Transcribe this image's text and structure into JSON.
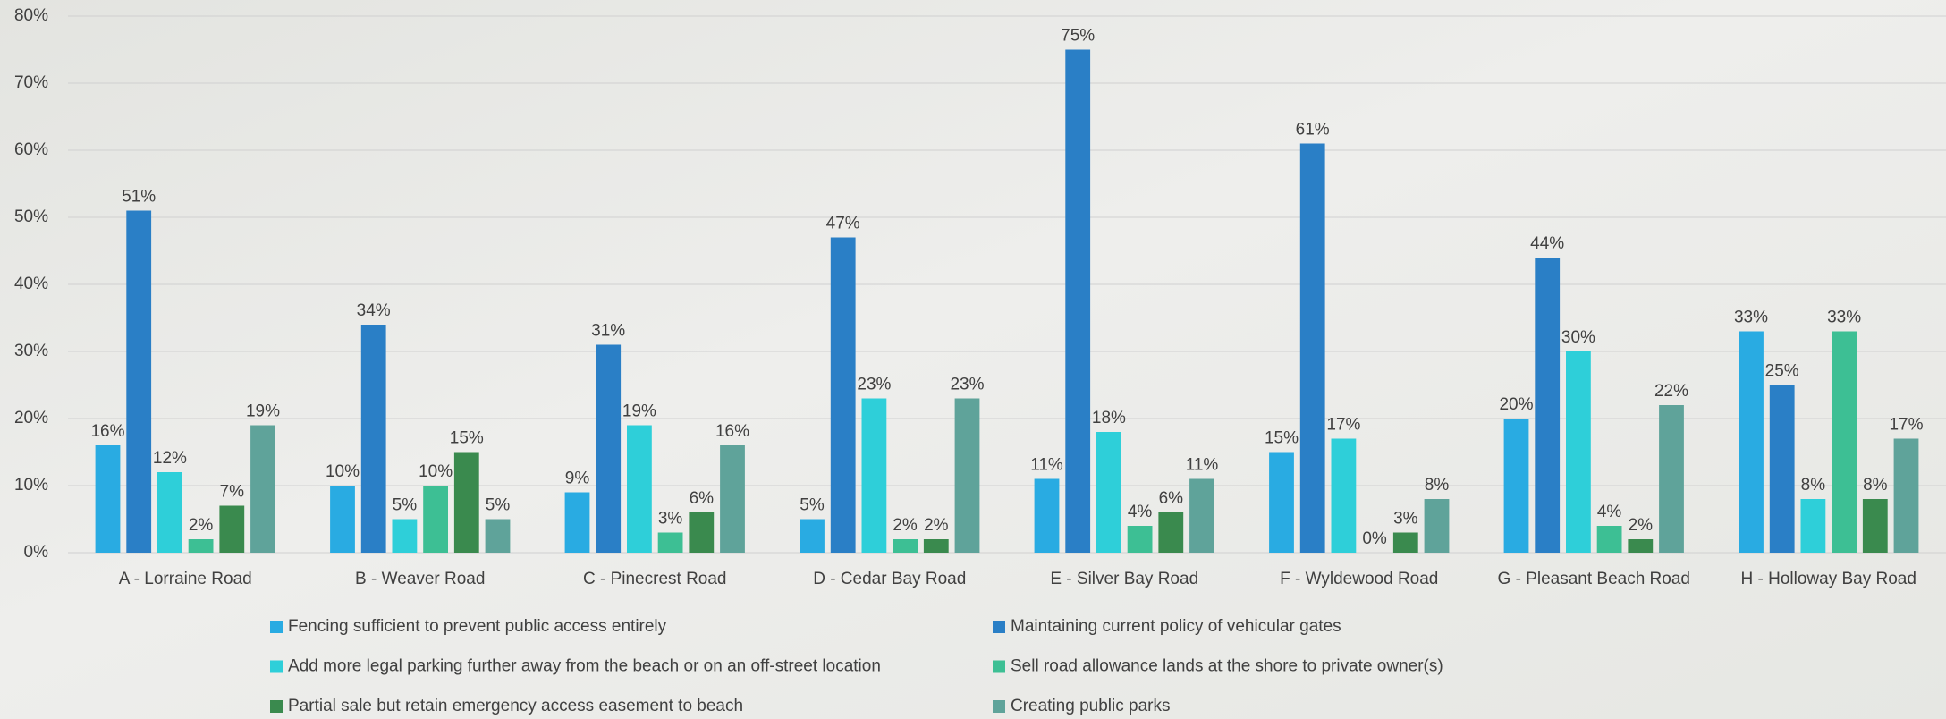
{
  "chart_data": {
    "type": "bar",
    "categories": [
      "A - Lorraine Road",
      "B - Weaver Road",
      "C - Pinecrest Road",
      "D - Cedar Bay Road",
      "E - Silver Bay Road",
      "F - Wyldewood Road",
      "G - Pleasant Beach Road",
      "H - Holloway Bay Road"
    ],
    "series": [
      {
        "name": "Fencing sufficient to prevent public access entirely",
        "color": "#29abe2",
        "values": [
          16,
          10,
          9,
          5,
          11,
          15,
          20,
          33
        ],
        "value_labels": [
          "16%",
          "10%",
          "9%",
          "5%",
          "11%",
          "15%",
          "20%",
          "33%"
        ]
      },
      {
        "name": "Maintaining current policy of vehicular gates",
        "color": "#2a7fc6",
        "values": [
          51,
          34,
          31,
          47,
          75,
          61,
          44,
          25
        ],
        "value_labels": [
          "51%",
          "34%",
          "31%",
          "47%",
          "75%",
          "61%",
          "44%",
          "25%"
        ]
      },
      {
        "name": "Add more legal parking further away from the beach or on an off-street location",
        "color": "#2ecfd9",
        "values": [
          12,
          5,
          19,
          23,
          18,
          17,
          30,
          8
        ],
        "value_labels": [
          "12%",
          "5%",
          "19%",
          "23%",
          "18%",
          "17%",
          "30%",
          "8%"
        ]
      },
      {
        "name": "Sell road allowance lands at the shore to private owner(s)",
        "color": "#3dbf94",
        "values": [
          2,
          10,
          3,
          2,
          4,
          0,
          4,
          33
        ],
        "value_labels": [
          "2%",
          "10%",
          "3%",
          "2%",
          "4%",
          "0%",
          "4%",
          "33%"
        ]
      },
      {
        "name": "Partial sale but retain emergency access easement to beach",
        "color": "#3a8a4e",
        "values": [
          7,
          15,
          6,
          2,
          6,
          3,
          2,
          8
        ],
        "value_labels": [
          "7%",
          "15%",
          "6%",
          "2%",
          "6%",
          "3%",
          "2%",
          "8%"
        ]
      },
      {
        "name": "Creating public parks",
        "color": "#5fa39a",
        "values": [
          19,
          5,
          16,
          23,
          11,
          8,
          22,
          17
        ],
        "value_labels": [
          "19%",
          "5%",
          "16%",
          "23%",
          "11%",
          "8%",
          "22%",
          "17%"
        ]
      }
    ],
    "ylim": [
      0,
      80
    ],
    "yticks": [
      {
        "value": 0,
        "label": "0%"
      },
      {
        "value": 10,
        "label": "10%"
      },
      {
        "value": 20,
        "label": "20%"
      },
      {
        "value": 30,
        "label": "30%"
      },
      {
        "value": 40,
        "label": "40%"
      },
      {
        "value": 50,
        "label": "50%"
      },
      {
        "value": 60,
        "label": "60%"
      },
      {
        "value": 70,
        "label": "70%"
      },
      {
        "value": 80,
        "label": "80%"
      }
    ],
    "grid": true
  }
}
